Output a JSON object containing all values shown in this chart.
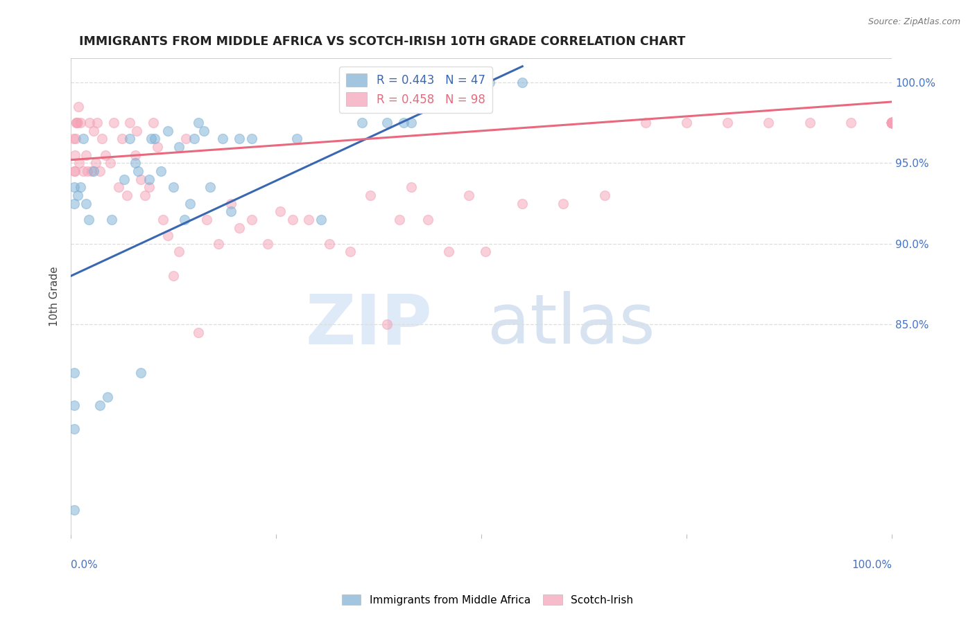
{
  "title": "IMMIGRANTS FROM MIDDLE AFRICA VS SCOTCH-IRISH 10TH GRADE CORRELATION CHART",
  "source": "Source: ZipAtlas.com",
  "ylabel": "10th Grade",
  "y_ticks": [
    85.0,
    90.0,
    95.0,
    100.0
  ],
  "y_tick_labels": [
    "85.0%",
    "90.0%",
    "95.0%",
    "100.0%"
  ],
  "blue_R": 0.443,
  "blue_N": 47,
  "pink_R": 0.458,
  "pink_N": 98,
  "blue_color": "#7bafd4",
  "pink_color": "#f4a0b5",
  "blue_line_color": "#3a67b1",
  "pink_line_color": "#e8697d",
  "legend_blue_label": "Immigrants from Middle Africa",
  "legend_pink_label": "Scotch-Irish",
  "blue_scatter_x": [
    0.4,
    0.4,
    0.4,
    0.4,
    0.4,
    0.4,
    0.8,
    1.2,
    1.5,
    1.8,
    2.2,
    2.8,
    3.5,
    4.5,
    5.0,
    6.5,
    7.2,
    7.8,
    8.2,
    8.5,
    9.5,
    9.8,
    10.2,
    11.0,
    11.8,
    12.5,
    13.2,
    13.8,
    14.5,
    15.0,
    15.5,
    16.2,
    17.0,
    18.5,
    19.5,
    20.5,
    22.0,
    27.5,
    30.5,
    35.5,
    38.5,
    40.5,
    41.5,
    50.5,
    51.0,
    55.0
  ],
  "blue_scatter_y": [
    73.5,
    78.5,
    80.0,
    82.0,
    92.5,
    93.5,
    93.0,
    93.5,
    96.5,
    92.5,
    91.5,
    94.5,
    80.0,
    80.5,
    91.5,
    94.0,
    96.5,
    95.0,
    94.5,
    82.0,
    94.0,
    96.5,
    96.5,
    94.5,
    97.0,
    93.5,
    96.0,
    91.5,
    92.5,
    96.5,
    97.5,
    97.0,
    93.5,
    96.5,
    92.0,
    96.5,
    96.5,
    96.5,
    91.5,
    97.5,
    97.5,
    97.5,
    97.5,
    100.0,
    100.0,
    100.0
  ],
  "pink_scatter_x": [
    0.3,
    0.4,
    0.5,
    0.5,
    0.6,
    0.7,
    0.7,
    0.8,
    0.9,
    1.0,
    1.2,
    1.5,
    1.8,
    2.0,
    2.3,
    2.5,
    2.8,
    3.0,
    3.2,
    3.5,
    3.8,
    4.2,
    4.8,
    5.2,
    5.8,
    6.2,
    6.8,
    7.2,
    7.8,
    8.0,
    8.5,
    9.0,
    9.5,
    10.0,
    10.5,
    11.2,
    11.8,
    12.5,
    13.2,
    14.0,
    15.5,
    16.5,
    18.0,
    19.5,
    20.5,
    22.0,
    24.0,
    25.5,
    27.0,
    29.0,
    31.5,
    34.0,
    36.5,
    38.5,
    40.0,
    41.5,
    43.5,
    46.0,
    48.5,
    50.5,
    55.0,
    60.0,
    65.0,
    70.0,
    75.0,
    80.0,
    85.0,
    90.0,
    95.0,
    100.0,
    100.0,
    100.0,
    100.0,
    100.0,
    100.0,
    100.0,
    100.0,
    100.0,
    100.0,
    100.0,
    100.0,
    100.0,
    100.0,
    100.0,
    100.0,
    100.0,
    100.0,
    100.0,
    100.0,
    100.0,
    100.0,
    100.0,
    100.0,
    100.0,
    100.0,
    100.0,
    100.0,
    100.0
  ],
  "pink_scatter_y": [
    96.5,
    94.5,
    94.5,
    95.5,
    96.5,
    97.5,
    97.5,
    97.5,
    98.5,
    95.0,
    97.5,
    94.5,
    95.5,
    94.5,
    97.5,
    94.5,
    97.0,
    95.0,
    97.5,
    94.5,
    96.5,
    95.5,
    95.0,
    97.5,
    93.5,
    96.5,
    93.0,
    97.5,
    95.5,
    97.0,
    94.0,
    93.0,
    93.5,
    97.5,
    96.0,
    91.5,
    90.5,
    88.0,
    89.5,
    96.5,
    84.5,
    91.5,
    90.0,
    92.5,
    91.0,
    91.5,
    90.0,
    92.0,
    91.5,
    91.5,
    90.0,
    89.5,
    93.0,
    85.0,
    91.5,
    93.5,
    91.5,
    89.5,
    93.0,
    89.5,
    92.5,
    92.5,
    93.0,
    97.5,
    97.5,
    97.5,
    97.5,
    97.5,
    97.5,
    97.5,
    97.5,
    97.5,
    97.5,
    97.5,
    97.5,
    97.5,
    97.5,
    97.5,
    97.5,
    97.5,
    97.5,
    97.5,
    97.5,
    97.5,
    97.5,
    97.5,
    97.5,
    97.5,
    97.5,
    97.5,
    97.5,
    97.5,
    97.5,
    97.5,
    97.5,
    97.5,
    97.5,
    97.5
  ],
  "xlim": [
    0,
    100
  ],
  "ylim": [
    72,
    101.5
  ],
  "background_color": "#ffffff",
  "grid_color": "#dddddd",
  "tick_color": "#4472c4",
  "title_fontsize": 12.5,
  "label_fontsize": 11,
  "marker_size": 100,
  "marker_alpha": 0.5
}
